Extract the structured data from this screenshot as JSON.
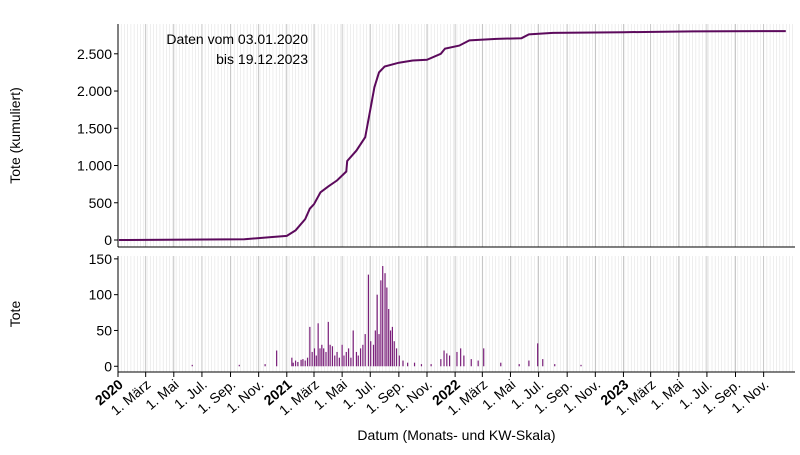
{
  "chart_data": [
    {
      "type": "line",
      "ylabel": "Tote (kumuliert)",
      "annotation": [
        "Daten vom 03.01.2020",
        "bis 19.12.2023"
      ],
      "color": "#5c0a5c",
      "x": [
        "2020-01-03",
        "2020-10-01",
        "2020-12-01",
        "2021-01-01",
        "2021-01-20",
        "2021-02-10",
        "2021-02-20",
        "2021-03-01",
        "2021-03-15",
        "2021-04-01",
        "2021-04-20",
        "2021-05-10",
        "2021-05-12",
        "2021-06-01",
        "2021-06-20",
        "2021-07-01",
        "2021-07-10",
        "2021-07-20",
        "2021-08-01",
        "2021-09-01",
        "2021-10-01",
        "2021-11-01",
        "2021-12-01",
        "2021-12-10",
        "2022-01-10",
        "2022-02-01",
        "2022-04-01",
        "2022-05-25",
        "2022-06-10",
        "2022-08-01",
        "2023-01-01",
        "2023-06-01",
        "2023-12-19"
      ],
      "values": [
        0,
        10,
        40,
        55,
        130,
        280,
        420,
        480,
        640,
        720,
        800,
        920,
        1060,
        1200,
        1380,
        1750,
        2050,
        2250,
        2330,
        2380,
        2410,
        2420,
        2500,
        2570,
        2610,
        2680,
        2700,
        2710,
        2760,
        2780,
        2790,
        2800,
        2805
      ],
      "xlim": [
        "2020-01-01",
        "2024-01-08"
      ],
      "ylim": [
        -94,
        2900
      ],
      "yticks": [
        0,
        500,
        {
          "value": 1000,
          "label": "1.000"
        },
        {
          "value": 1500,
          "label": "1.500"
        },
        {
          "value": 2000,
          "label": "2.000"
        },
        {
          "value": 2500,
          "label": "2.500"
        }
      ],
      "grid": true
    },
    {
      "type": "bar",
      "ylabel": "Tote",
      "xlabel": "Datum (Monats- und KW-Skala)",
      "color": "#7a1f7a",
      "x": [
        "2020-06-10",
        "2020-09-20",
        "2020-11-15",
        "2020-12-10",
        "2021-01-12",
        "2021-01-15",
        "2021-01-20",
        "2021-01-25",
        "2021-02-01",
        "2021-02-05",
        "2021-02-10",
        "2021-02-15",
        "2021-02-20",
        "2021-02-25",
        "2021-03-02",
        "2021-03-06",
        "2021-03-10",
        "2021-03-14",
        "2021-03-18",
        "2021-03-22",
        "2021-03-27",
        "2021-04-01",
        "2021-04-05",
        "2021-04-10",
        "2021-04-15",
        "2021-04-20",
        "2021-04-25",
        "2021-05-01",
        "2021-05-05",
        "2021-05-10",
        "2021-05-15",
        "2021-05-20",
        "2021-05-25",
        "2021-06-01",
        "2021-06-05",
        "2021-06-10",
        "2021-06-15",
        "2021-06-20",
        "2021-06-27",
        "2021-07-02",
        "2021-07-08",
        "2021-07-12",
        "2021-07-16",
        "2021-07-20",
        "2021-07-24",
        "2021-07-28",
        "2021-08-02",
        "2021-08-06",
        "2021-08-10",
        "2021-08-14",
        "2021-08-18",
        "2021-08-22",
        "2021-08-27",
        "2021-09-02",
        "2021-09-10",
        "2021-09-20",
        "2021-10-05",
        "2021-10-20",
        "2021-11-10",
        "2021-12-01",
        "2021-12-08",
        "2021-12-14",
        "2021-12-20",
        "2022-01-05",
        "2022-01-13",
        "2022-01-20",
        "2022-02-05",
        "2022-02-20",
        "2022-03-04",
        "2022-04-10",
        "2022-05-20",
        "2022-06-10",
        "2022-06-29",
        "2022-07-10",
        "2022-08-05",
        "2022-10-01"
      ],
      "values": [
        2,
        2,
        3,
        22,
        12,
        5,
        8,
        6,
        9,
        10,
        8,
        12,
        55,
        20,
        25,
        15,
        60,
        25,
        30,
        25,
        20,
        62,
        30,
        28,
        15,
        20,
        12,
        30,
        15,
        20,
        25,
        12,
        50,
        20,
        15,
        25,
        30,
        45,
        128,
        35,
        30,
        50,
        100,
        45,
        120,
        140,
        130,
        110,
        80,
        50,
        55,
        35,
        25,
        15,
        8,
        5,
        5,
        3,
        3,
        10,
        22,
        18,
        15,
        20,
        25,
        15,
        10,
        8,
        25,
        5,
        3,
        8,
        32,
        10,
        3,
        2
      ],
      "xlim": [
        "2020-01-01",
        "2024-01-08"
      ],
      "ylim": [
        -8,
        154
      ],
      "yticks": [
        0,
        50,
        100,
        150
      ],
      "xticks": [
        {
          "value": "2020-01-01",
          "label": "2020"
        },
        {
          "value": "2020-03-01",
          "label": "1. März"
        },
        {
          "value": "2020-05-01",
          "label": "1. Mai"
        },
        {
          "value": "2020-07-01",
          "label": "1. Jul."
        },
        {
          "value": "2020-09-01",
          "label": "1. Sep."
        },
        {
          "value": "2020-11-01",
          "label": "1. Nov."
        },
        {
          "value": "2021-01-01",
          "label": "2021"
        },
        {
          "value": "2021-03-01",
          "label": "1. März"
        },
        {
          "value": "2021-05-01",
          "label": "1. Mai"
        },
        {
          "value": "2021-07-01",
          "label": "1. Jul."
        },
        {
          "value": "2021-09-01",
          "label": "1. Sep."
        },
        {
          "value": "2021-11-01",
          "label": "1. Nov."
        },
        {
          "value": "2022-01-01",
          "label": "2022"
        },
        {
          "value": "2022-03-01",
          "label": "1. März"
        },
        {
          "value": "2022-05-01",
          "label": "1. Mai"
        },
        {
          "value": "2022-07-01",
          "label": "1. Jul."
        },
        {
          "value": "2022-09-01",
          "label": "1. Sep."
        },
        {
          "value": "2022-11-01",
          "label": "1. Nov."
        },
        {
          "value": "2023-01-01",
          "label": "2023"
        },
        {
          "value": "2023-03-01",
          "label": "1. März"
        },
        {
          "value": "2023-05-01",
          "label": "1. Mai"
        },
        {
          "value": "2023-07-01",
          "label": "1. Jul."
        },
        {
          "value": "2023-09-01",
          "label": "1. Sep."
        },
        {
          "value": "2023-11-01",
          "label": "1. Nov."
        }
      ],
      "grid": true
    }
  ]
}
